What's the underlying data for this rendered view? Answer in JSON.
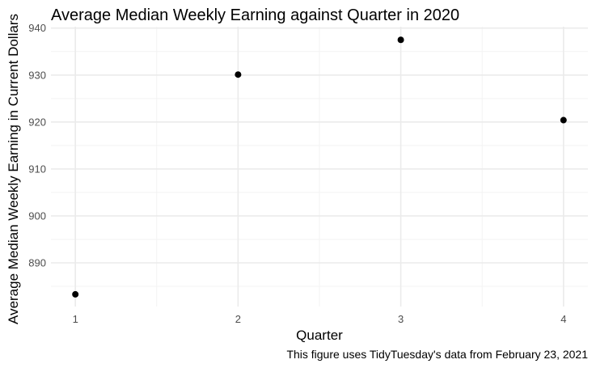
{
  "chart_data": {
    "type": "scatter",
    "title": "Average Median Weekly Earning against Quarter in 2020",
    "xlabel": "Quarter",
    "ylabel": "Average Median Weekly Earning in Current Dollars",
    "caption": "This figure uses TidyTuesday's data from February 23, 2021",
    "x": [
      1,
      2,
      3,
      4
    ],
    "y": [
      883.3,
      930.1,
      937.5,
      920.4
    ],
    "x_ticks": [
      1,
      2,
      3,
      4
    ],
    "x_tick_labels": [
      "1",
      "2",
      "3",
      "4"
    ],
    "y_ticks": [
      890,
      900,
      910,
      920,
      930,
      940
    ],
    "y_tick_labels": [
      "890",
      "900",
      "910",
      "920",
      "930",
      "940"
    ],
    "xlim": [
      0.85,
      4.15
    ],
    "ylim": [
      880.7,
      940.3
    ],
    "grid": true,
    "legend": "none"
  }
}
